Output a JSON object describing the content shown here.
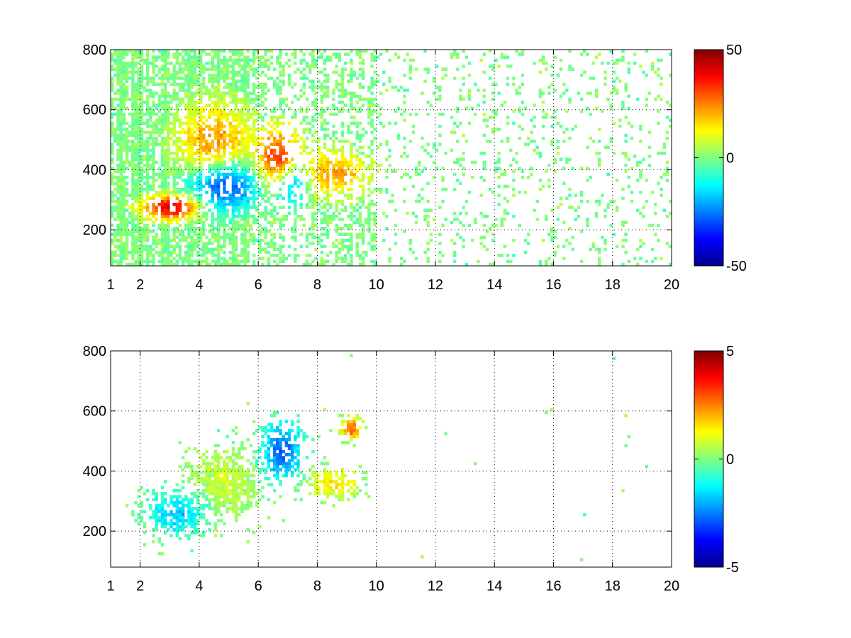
{
  "chart_data": [
    {
      "type": "heatmap",
      "xlim": [
        1,
        20
      ],
      "ylim": [
        80,
        800
      ],
      "x_ticks": [
        1,
        2,
        4,
        6,
        8,
        10,
        12,
        14,
        16,
        18,
        20
      ],
      "y_ticks": [
        200,
        400,
        600,
        800
      ],
      "grid": true,
      "colormap": "jet",
      "clim": [
        -50,
        50
      ],
      "colorbar_ticks": [
        -50,
        0,
        50
      ],
      "colorbar_placement": "right",
      "features": [
        {
          "x": [
            2.3,
            3.8
          ],
          "y": [
            250,
            300
          ],
          "value": 42
        },
        {
          "x": [
            3.8,
            5.8
          ],
          "y": [
            280,
            420
          ],
          "value": -38
        },
        {
          "x": [
            3.5,
            5.5
          ],
          "y": [
            350,
            600
          ],
          "value": 25
        },
        {
          "x": [
            6.2,
            7.2
          ],
          "y": [
            350,
            520
          ],
          "value": 35
        },
        {
          "x": [
            6.8,
            7.5
          ],
          "y": [
            300,
            420
          ],
          "value": -30
        },
        {
          "x": [
            7.5,
            9.5
          ],
          "y": [
            330,
            450
          ],
          "value": 22
        }
      ]
    },
    {
      "type": "heatmap",
      "xlim": [
        1,
        20
      ],
      "ylim": [
        80,
        800
      ],
      "x_ticks": [
        1,
        2,
        4,
        6,
        8,
        10,
        12,
        14,
        16,
        18,
        20
      ],
      "y_ticks": [
        200,
        400,
        600,
        800
      ],
      "grid": true,
      "colormap": "jet",
      "clim": [
        -5,
        5
      ],
      "colorbar_ticks": [
        -5,
        0,
        5
      ],
      "colorbar_placement": "right",
      "features": [
        {
          "x": [
            2.5,
            4.0
          ],
          "y": [
            200,
            320
          ],
          "value": -1.8
        },
        {
          "x": [
            4.0,
            5.8
          ],
          "y": [
            280,
            450
          ],
          "value": 0.8
        },
        {
          "x": [
            6.3,
            7.3
          ],
          "y": [
            380,
            550
          ],
          "value": -2.8
        },
        {
          "x": [
            7.8,
            9.2
          ],
          "y": [
            330,
            390
          ],
          "value": 1.5
        },
        {
          "x": [
            9.0,
            9.3
          ],
          "y": [
            520,
            560
          ],
          "value": 2.8
        }
      ]
    }
  ]
}
